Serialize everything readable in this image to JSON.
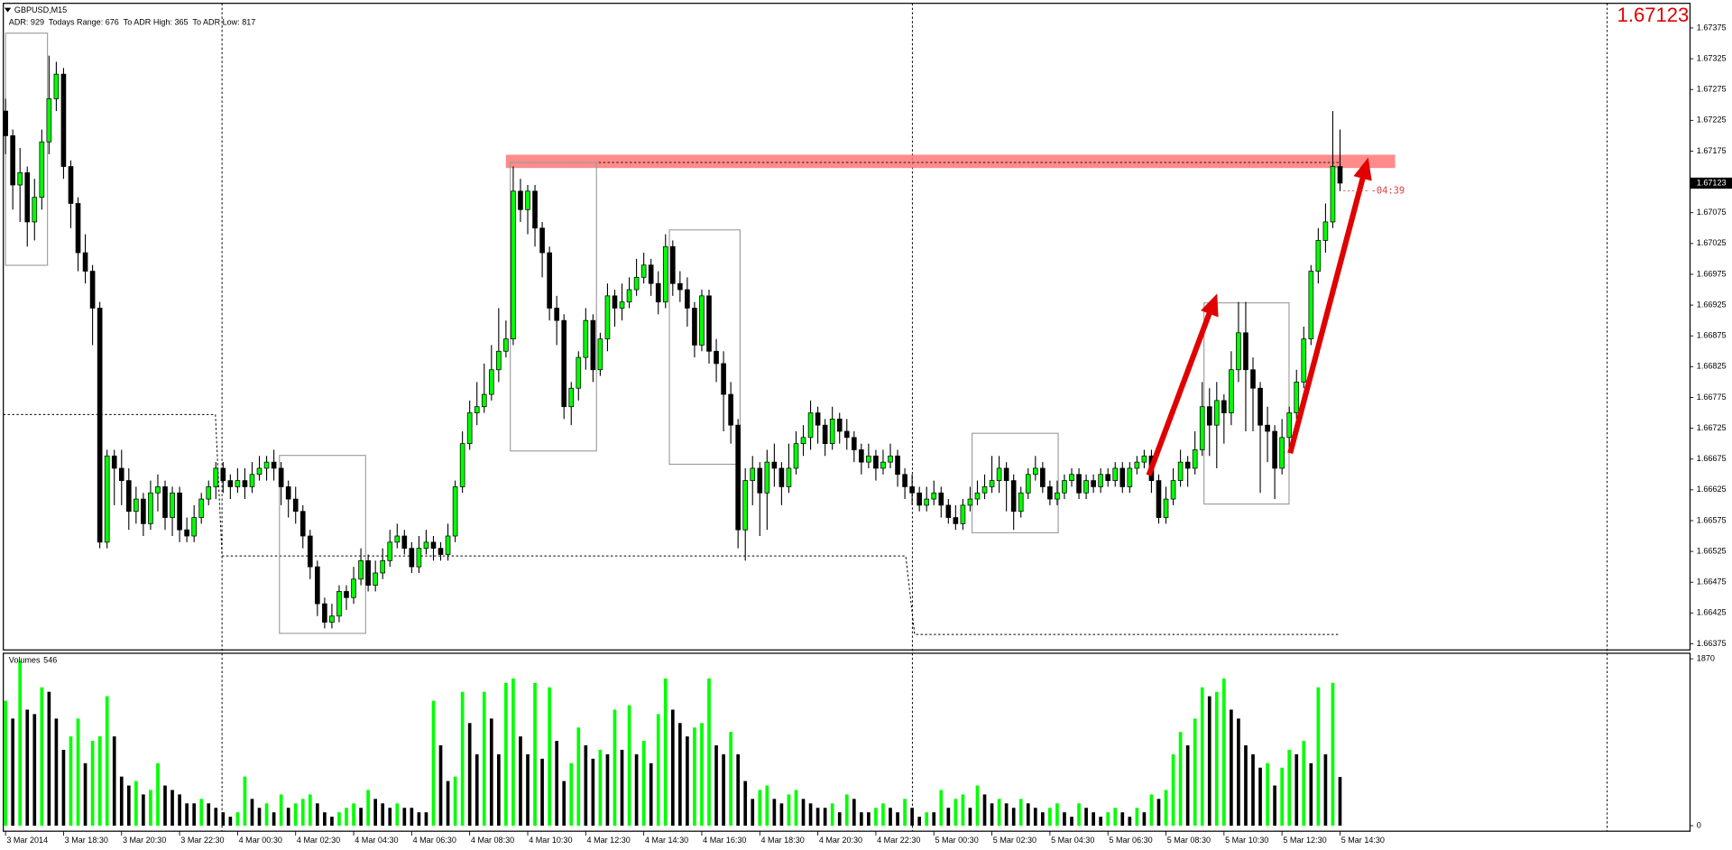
{
  "chart_data": {
    "type": "candlestick",
    "title": "GBPUSD,M15",
    "info": "ADR: 929  Todays Range: 676  To ADR High: 365  To ADR Low: 817",
    "countdown": "-04:39",
    "up_color": "#00ff00",
    "down_color": "#000000",
    "ylim": [
      1.66365,
      1.67415
    ],
    "yticks": [
      1.66375,
      1.66425,
      1.66475,
      1.66525,
      1.66575,
      1.66625,
      1.66675,
      1.66725,
      1.66775,
      1.66825,
      1.66875,
      1.66925,
      1.66975,
      1.67025,
      1.67075,
      1.67175,
      1.67225,
      1.67275,
      1.67325,
      1.67375
    ],
    "categories": [
      "3 Mar 2014",
      null,
      null,
      null,
      null,
      null,
      null,
      null,
      "3 Mar 18:30",
      null,
      null,
      null,
      null,
      null,
      null,
      null,
      "3 Mar 20:30",
      null,
      null,
      null,
      null,
      null,
      null,
      null,
      "3 Mar 22:30",
      null,
      null,
      null,
      null,
      null,
      null,
      null,
      "4 Mar 00:30",
      null,
      null,
      null,
      null,
      null,
      null,
      null,
      "4 Mar 02:30",
      null,
      null,
      null,
      null,
      null,
      null,
      null,
      "4 Mar 04:30",
      null,
      null,
      null,
      null,
      null,
      null,
      null,
      "4 Mar 06:30",
      null,
      null,
      null,
      null,
      null,
      null,
      null,
      "4 Mar 08:30",
      null,
      null,
      null,
      null,
      null,
      null,
      null,
      "4 Mar 10:30",
      null,
      null,
      null,
      null,
      null,
      null,
      null,
      "4 Mar 12:30",
      null,
      null,
      null,
      null,
      null,
      null,
      null,
      "4 Mar 14:30",
      null,
      null,
      null,
      null,
      null,
      null,
      null,
      "4 Mar 16:30",
      null,
      null,
      null,
      null,
      null,
      null,
      null,
      "4 Mar 18:30",
      null,
      null,
      null,
      null,
      null,
      null,
      null,
      "4 Mar 20:30",
      null,
      null,
      null,
      null,
      null,
      null,
      null,
      "4 Mar 22:30",
      null,
      null,
      null,
      null,
      null,
      null,
      null,
      "5 Mar 00:30",
      null,
      null,
      null,
      null,
      null,
      null,
      null,
      "5 Mar 02:30",
      null,
      null,
      null,
      null,
      null,
      null,
      null,
      "5 Mar 04:30",
      null,
      null,
      null,
      null,
      null,
      null,
      null,
      "5 Mar 06:30",
      null,
      null,
      null,
      null,
      null,
      null,
      null,
      "5 Mar 08:30",
      null,
      null,
      null,
      null,
      null,
      null,
      null,
      "5 Mar 10:30",
      null,
      null,
      null,
      null,
      null,
      null,
      null,
      "5 Mar 12:30",
      null,
      null,
      null,
      null,
      null,
      null,
      null,
      "5 Mar 14:30"
    ],
    "open": [
      1.6724,
      1.672,
      1.6712,
      1.6714,
      1.6706,
      1.671,
      1.6719,
      1.6726,
      1.673,
      1.6715,
      1.6709,
      1.6701,
      1.6698,
      1.6692,
      1.6654,
      1.6668,
      1.6666,
      1.6664,
      1.6659,
      1.6661,
      1.6657,
      1.6662,
      1.6663,
      1.6658,
      1.6662,
      1.6656,
      1.6655,
      1.6658,
      1.6661,
      1.6663,
      1.6666,
      1.6664,
      1.6663,
      1.6664,
      1.6663,
      1.6665,
      1.6666,
      1.6667,
      1.6666,
      1.6663,
      1.6661,
      1.6659,
      1.6655,
      1.665,
      1.6644,
      1.6641,
      1.6642,
      1.6646,
      1.6645,
      1.6648,
      1.6651,
      1.6647,
      1.6649,
      1.6651,
      1.6654,
      1.6655,
      1.6653,
      1.665,
      1.6653,
      1.6654,
      1.6653,
      1.6652,
      1.6655,
      1.6663,
      1.667,
      1.6675,
      1.6676,
      1.6678,
      1.6682,
      1.6685,
      1.6687,
      1.6711,
      1.6708,
      1.6711,
      1.6705,
      1.6701,
      1.6692,
      1.669,
      1.6676,
      1.6679,
      1.6684,
      1.669,
      1.6682,
      1.6687,
      1.6694,
      1.6692,
      1.6693,
      1.6695,
      1.6697,
      1.6699,
      1.6696,
      1.6693,
      1.6702,
      1.6696,
      1.6695,
      1.6692,
      1.6686,
      1.6694,
      1.6685,
      1.6683,
      1.6678,
      1.6673,
      1.6656,
      1.6664,
      1.6666,
      1.6662,
      1.6667,
      1.6666,
      1.6663,
      1.6666,
      1.667,
      1.6671,
      1.6675,
      1.6673,
      1.667,
      1.6674,
      1.6672,
      1.6671,
      1.6669,
      1.6667,
      1.6668,
      1.6666,
      1.6667,
      1.6668,
      1.6665,
      1.6663,
      1.6662,
      1.666,
      1.6661,
      1.6662,
      1.666,
      1.6658,
      1.6657,
      1.666,
      1.6661,
      1.6662,
      1.6663,
      1.6664,
      1.6666,
      1.6664,
      1.6659,
      1.6662,
      1.6665,
      1.6666,
      1.6663,
      1.6661,
      1.6662,
      1.6664,
      1.6665,
      1.6662,
      1.6664,
      1.6663,
      1.6665,
      1.6664,
      1.6666,
      1.6663,
      1.6666,
      1.6667,
      1.6668,
      1.6664,
      1.6658,
      1.6661,
      1.6664,
      1.6667,
      1.6666,
      1.6669,
      1.6676,
      1.6673,
      1.6677,
      1.6675,
      1.6682,
      1.6688,
      1.6682,
      1.6679,
      1.6673,
      1.6672,
      1.6666,
      1.6671,
      1.6675,
      1.668,
      1.6687,
      1.6698,
      1.6703,
      1.6706,
      1.6715
    ],
    "high": [
      1.6726,
      1.6721,
      1.6718,
      1.6715,
      1.6713,
      1.6721,
      1.6733,
      1.6732,
      1.6731,
      1.6716,
      1.671,
      1.6704,
      1.6699,
      1.6693,
      1.6669,
      1.6669,
      1.6669,
      1.6666,
      1.6663,
      1.6662,
      1.6664,
      1.6665,
      1.6664,
      1.6663,
      1.6663,
      1.6658,
      1.666,
      1.6662,
      1.6664,
      1.6667,
      1.6667,
      1.6665,
      1.6666,
      1.6666,
      1.6667,
      1.6668,
      1.6668,
      1.6669,
      1.6667,
      1.6664,
      1.6663,
      1.666,
      1.6656,
      1.6651,
      1.6645,
      1.6644,
      1.6647,
      1.6647,
      1.665,
      1.6653,
      1.6652,
      1.6651,
      1.6653,
      1.6656,
      1.6657,
      1.6656,
      1.6654,
      1.6655,
      1.6656,
      1.6655,
      1.6654,
      1.6657,
      1.6664,
      1.6672,
      1.6677,
      1.668,
      1.6683,
      1.6686,
      1.6692,
      1.669,
      1.6715,
      1.6713,
      1.6712,
      1.6712,
      1.6706,
      1.6702,
      1.6694,
      1.6691,
      1.668,
      1.6685,
      1.6692,
      1.6691,
      1.6688,
      1.6696,
      1.6695,
      1.6696,
      1.6697,
      1.67,
      1.6701,
      1.67,
      1.6698,
      1.6704,
      1.6703,
      1.6698,
      1.6697,
      1.6693,
      1.6695,
      1.6695,
      1.6687,
      1.6685,
      1.668,
      1.6674,
      1.6666,
      1.6668,
      1.6667,
      1.6669,
      1.667,
      1.6667,
      1.667,
      1.6672,
      1.6673,
      1.6677,
      1.6676,
      1.6674,
      1.6676,
      1.6675,
      1.6674,
      1.6672,
      1.667,
      1.667,
      1.6669,
      1.6669,
      1.667,
      1.6669,
      1.6666,
      1.6665,
      1.6663,
      1.6663,
      1.6664,
      1.6663,
      1.6661,
      1.666,
      1.6661,
      1.6663,
      1.6664,
      1.6665,
      1.6668,
      1.6668,
      1.6667,
      1.6665,
      1.6663,
      1.6666,
      1.6668,
      1.6667,
      1.6664,
      1.6664,
      1.6665,
      1.6666,
      1.6666,
      1.6665,
      1.6665,
      1.6666,
      1.6666,
      1.6667,
      1.6667,
      1.6667,
      1.6668,
      1.6669,
      1.6669,
      1.6665,
      1.6663,
      1.6666,
      1.6669,
      1.6668,
      1.6672,
      1.668,
      1.6679,
      1.668,
      1.6678,
      1.6685,
      1.6693,
      1.6693,
      1.6684,
      1.668,
      1.6676,
      1.6673,
      1.6674,
      1.6676,
      1.6682,
      1.6689,
      1.6699,
      1.6705,
      1.6709,
      1.6724,
      1.6721
    ],
    "low": [
      1.6717,
      1.6708,
      1.6706,
      1.6702,
      1.6703,
      1.6708,
      1.6717,
      1.6724,
      1.6713,
      1.6705,
      1.6698,
      1.6696,
      1.6686,
      1.6653,
      1.6653,
      1.666,
      1.666,
      1.6656,
      1.6657,
      1.6655,
      1.6656,
      1.6659,
      1.6656,
      1.6655,
      1.6654,
      1.6654,
      1.6654,
      1.6657,
      1.666,
      1.6661,
      1.6662,
      1.6661,
      1.6662,
      1.6661,
      1.6662,
      1.6664,
      1.6664,
      1.6664,
      1.666,
      1.6658,
      1.6657,
      1.6653,
      1.6648,
      1.6642,
      1.664,
      1.664,
      1.6641,
      1.6643,
      1.6644,
      1.6647,
      1.6646,
      1.6646,
      1.6648,
      1.665,
      1.6653,
      1.6652,
      1.6649,
      1.6649,
      1.6652,
      1.6651,
      1.6651,
      1.6651,
      1.6654,
      1.6662,
      1.6669,
      1.6673,
      1.6675,
      1.6677,
      1.668,
      1.6684,
      1.6686,
      1.6706,
      1.6704,
      1.6702,
      1.6697,
      1.669,
      1.6686,
      1.6674,
      1.6673,
      1.6677,
      1.6682,
      1.668,
      1.6681,
      1.6685,
      1.6689,
      1.669,
      1.6692,
      1.6694,
      1.6696,
      1.6694,
      1.6691,
      1.6692,
      1.6694,
      1.6693,
      1.6689,
      1.6684,
      1.6685,
      1.6683,
      1.668,
      1.6672,
      1.667,
      1.6653,
      1.6651,
      1.666,
      1.6655,
      1.6656,
      1.6663,
      1.666,
      1.6662,
      1.6665,
      1.6668,
      1.6669,
      1.667,
      1.6668,
      1.6669,
      1.667,
      1.6669,
      1.6667,
      1.6665,
      1.6666,
      1.6664,
      1.6665,
      1.6666,
      1.6663,
      1.6661,
      1.666,
      1.6659,
      1.6659,
      1.666,
      1.6658,
      1.6657,
      1.6656,
      1.6656,
      1.6659,
      1.666,
      1.6661,
      1.6662,
      1.6662,
      1.6659,
      1.6656,
      1.6658,
      1.6661,
      1.6664,
      1.6662,
      1.666,
      1.666,
      1.6661,
      1.6663,
      1.6661,
      1.6661,
      1.6662,
      1.6662,
      1.6663,
      1.6663,
      1.6662,
      1.6662,
      1.6665,
      1.6666,
      1.6662,
      1.6657,
      1.6657,
      1.666,
      1.6663,
      1.6663,
      1.6665,
      1.6668,
      1.6668,
      1.6666,
      1.667,
      1.6673,
      1.668,
      1.6672,
      1.6672,
      1.6662,
      1.6667,
      1.6661,
      1.6665,
      1.6669,
      1.6674,
      1.6679,
      1.6686,
      1.6696,
      1.6701,
      1.6705,
      1.6711
    ],
    "close": [
      1.672,
      1.6712,
      1.6714,
      1.6706,
      1.671,
      1.6719,
      1.6726,
      1.673,
      1.6715,
      1.6709,
      1.6701,
      1.6698,
      1.6692,
      1.6654,
      1.6668,
      1.6666,
      1.6664,
      1.6659,
      1.6661,
      1.6657,
      1.6662,
      1.6663,
      1.6658,
      1.6662,
      1.6656,
      1.6655,
      1.6658,
      1.6661,
      1.6663,
      1.6666,
      1.6664,
      1.6663,
      1.6664,
      1.6663,
      1.6665,
      1.6666,
      1.6667,
      1.6666,
      1.6663,
      1.6661,
      1.6659,
      1.6655,
      1.665,
      1.6644,
      1.6641,
      1.6642,
      1.6646,
      1.6645,
      1.6648,
      1.6651,
      1.6647,
      1.6649,
      1.6651,
      1.6654,
      1.6655,
      1.6653,
      1.665,
      1.6653,
      1.6654,
      1.6653,
      1.6652,
      1.6655,
      1.6663,
      1.667,
      1.6675,
      1.6676,
      1.6678,
      1.6682,
      1.6685,
      1.6687,
      1.6711,
      1.6708,
      1.6711,
      1.6705,
      1.6701,
      1.6692,
      1.669,
      1.6676,
      1.6679,
      1.6684,
      1.669,
      1.6682,
      1.6687,
      1.6694,
      1.6692,
      1.6693,
      1.6695,
      1.6697,
      1.6699,
      1.6696,
      1.6693,
      1.6702,
      1.6696,
      1.6695,
      1.6692,
      1.6686,
      1.6694,
      1.6685,
      1.6683,
      1.6678,
      1.6673,
      1.6656,
      1.6664,
      1.6666,
      1.6662,
      1.6667,
      1.6666,
      1.6663,
      1.6666,
      1.667,
      1.6671,
      1.6675,
      1.6673,
      1.667,
      1.6674,
      1.6672,
      1.6671,
      1.6669,
      1.6667,
      1.6668,
      1.6666,
      1.6667,
      1.6668,
      1.6665,
      1.6663,
      1.6662,
      1.666,
      1.6661,
      1.6662,
      1.666,
      1.6658,
      1.6657,
      1.666,
      1.6661,
      1.6662,
      1.6663,
      1.6664,
      1.6666,
      1.6664,
      1.6659,
      1.6662,
      1.6665,
      1.6666,
      1.6663,
      1.6661,
      1.6662,
      1.6664,
      1.6665,
      1.6662,
      1.6664,
      1.6663,
      1.6665,
      1.6664,
      1.6666,
      1.6663,
      1.6666,
      1.6667,
      1.6668,
      1.6664,
      1.6658,
      1.6661,
      1.6664,
      1.6667,
      1.6666,
      1.6669,
      1.6676,
      1.6673,
      1.6677,
      1.6675,
      1.6682,
      1.6688,
      1.6682,
      1.6679,
      1.6673,
      1.6672,
      1.6666,
      1.6671,
      1.6675,
      1.668,
      1.6687,
      1.6698,
      1.6703,
      1.6706,
      1.6715,
      1.67123
    ],
    "volume": {
      "label": "Volumes",
      "ylim": [
        0,
        1870
      ],
      "yticks": [
        0,
        1870
      ],
      "values": [
        1400,
        1200,
        1850,
        1300,
        1250,
        1550,
        1500,
        1200,
        850,
        1000,
        1200,
        700,
        950,
        1000,
        1450,
        1000,
        550,
        450,
        500,
        350,
        400,
        700,
        450,
        400,
        350,
        250,
        250,
        300,
        250,
        200,
        150,
        100,
        150,
        550,
        300,
        200,
        250,
        150,
        350,
        200,
        250,
        300,
        350,
        250,
        150,
        100,
        150,
        200,
        250,
        200,
        400,
        300,
        250,
        200,
        250,
        200,
        200,
        150,
        150,
        1400,
        900,
        500,
        550,
        1500,
        1150,
        800,
        1500,
        1200,
        800,
        1600,
        1650,
        1000,
        800,
        1600,
        750,
        1550,
        950,
        500,
        700,
        1100,
        900,
        750,
        850,
        800,
        1300,
        850,
        1350,
        800,
        950,
        700,
        1250,
        1650,
        1300,
        1150,
        1000,
        1100,
        1150,
        1650,
        900,
        800,
        1050,
        800,
        500,
        300,
        400,
        450,
        300,
        250,
        350,
        400,
        300,
        250,
        200,
        200,
        250,
        150,
        350,
        300,
        150,
        150,
        200,
        250,
        200,
        150,
        300,
        200,
        100,
        150,
        150,
        400,
        200,
        300,
        350,
        200,
        450,
        350,
        250,
        300,
        250,
        200,
        300,
        250,
        200,
        150,
        200,
        250,
        150,
        100,
        250,
        200,
        150,
        100,
        150,
        200,
        150,
        100,
        200,
        150,
        350,
        300,
        400,
        800,
        1050,
        900,
        1200,
        1550,
        1450,
        1500,
        1650,
        1300,
        1200,
        900,
        800,
        650,
        700,
        450,
        650,
        850,
        800,
        950,
        700,
        1550,
        800,
        1600,
        546
      ]
    }
  }
}
